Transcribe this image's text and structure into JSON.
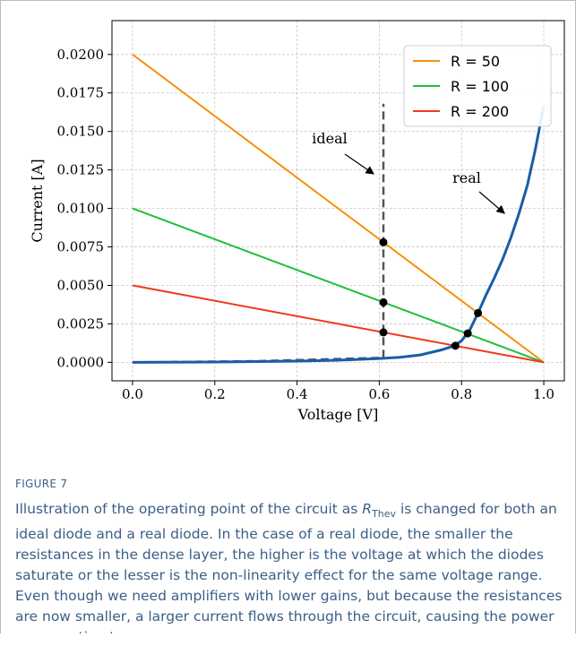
{
  "chart_data": {
    "type": "line",
    "xlabel": "Voltage [V]",
    "ylabel": "Current [A]",
    "xlim": [
      -0.05,
      1.05
    ],
    "ylim": [
      -0.0012,
      0.0222
    ],
    "xticks": [
      {
        "value": 0,
        "label": "0.0"
      },
      {
        "value": 0.2,
        "label": "0.2"
      },
      {
        "value": 0.4,
        "label": "0.4"
      },
      {
        "value": 0.6,
        "label": "0.6"
      },
      {
        "value": 0.8,
        "label": "0.8"
      },
      {
        "value": 1,
        "label": "1.0"
      }
    ],
    "yticks": [
      {
        "value": 0,
        "label": "0.0000"
      },
      {
        "value": 0.0025,
        "label": "0.0025"
      },
      {
        "value": 0.005,
        "label": "0.0050"
      },
      {
        "value": 0.0075,
        "label": "0.0075"
      },
      {
        "value": 0.01,
        "label": "0.0100"
      },
      {
        "value": 0.0125,
        "label": "0.0125"
      },
      {
        "value": 0.015,
        "label": "0.0150"
      },
      {
        "value": 0.0175,
        "label": "0.0175"
      },
      {
        "value": 0.02,
        "label": "0.0200"
      }
    ],
    "grid": true,
    "legend": "upper right",
    "series": [
      {
        "name": "R = 50",
        "color": "#f7900a",
        "x": [
          0,
          1
        ],
        "values": [
          0.02,
          0
        ]
      },
      {
        "name": "R = 100",
        "color": "#1fbf3a",
        "x": [
          0,
          1
        ],
        "values": [
          0.01,
          0
        ]
      },
      {
        "name": "R = 200",
        "color": "#f0381c",
        "x": [
          0,
          1
        ],
        "values": [
          0.005,
          0
        ]
      }
    ],
    "diode_curves": [
      {
        "label": "ideal",
        "color": "#555555",
        "dashed": true,
        "x": [
          0,
          0.3,
          0.61,
          0.61
        ],
        "values": [
          0,
          8e-05,
          0.0003,
          0.0168
        ]
      },
      {
        "label": "real",
        "color": "#1a5da6",
        "dashed": false,
        "x": [
          0,
          0.2,
          0.4,
          0.5,
          0.6,
          0.65,
          0.7,
          0.75,
          0.78,
          0.8,
          0.82,
          0.84,
          0.86,
          0.88,
          0.9,
          0.92,
          0.94,
          0.96,
          0.98,
          1.0
        ],
        "values": [
          0,
          2e-05,
          8e-05,
          0.00014,
          0.00025,
          0.00033,
          0.00048,
          0.0008,
          0.00105,
          0.0014,
          0.0021,
          0.0032,
          0.0044,
          0.0055,
          0.0067,
          0.0081,
          0.0097,
          0.0115,
          0.0139,
          0.0167
        ]
      }
    ],
    "operating_points": {
      "color": "#000000",
      "x": [
        0.61,
        0.61,
        0.61,
        0.785,
        0.815,
        0.84
      ],
      "values": [
        0.0078,
        0.0039,
        0.00195,
        0.00108,
        0.00188,
        0.0032
      ]
    }
  },
  "caption": {
    "label": "FIGURE 7",
    "text_before": "Illustration of the operating point of the circuit as ",
    "symbol": "R",
    "symbol_sub": "Thev",
    "text_after": " is changed for both an ideal diode and a real diode. In the case of a real diode, the smaller the resistances in the dense layer, the higher is the voltage at which the diodes saturate or the lesser is the non-linearity effect for the same voltage range. Even though we need amplifiers with lower gains, but because the resistances are now smaller, a larger current flows through the circuit, causing the power consumption to go up."
  }
}
